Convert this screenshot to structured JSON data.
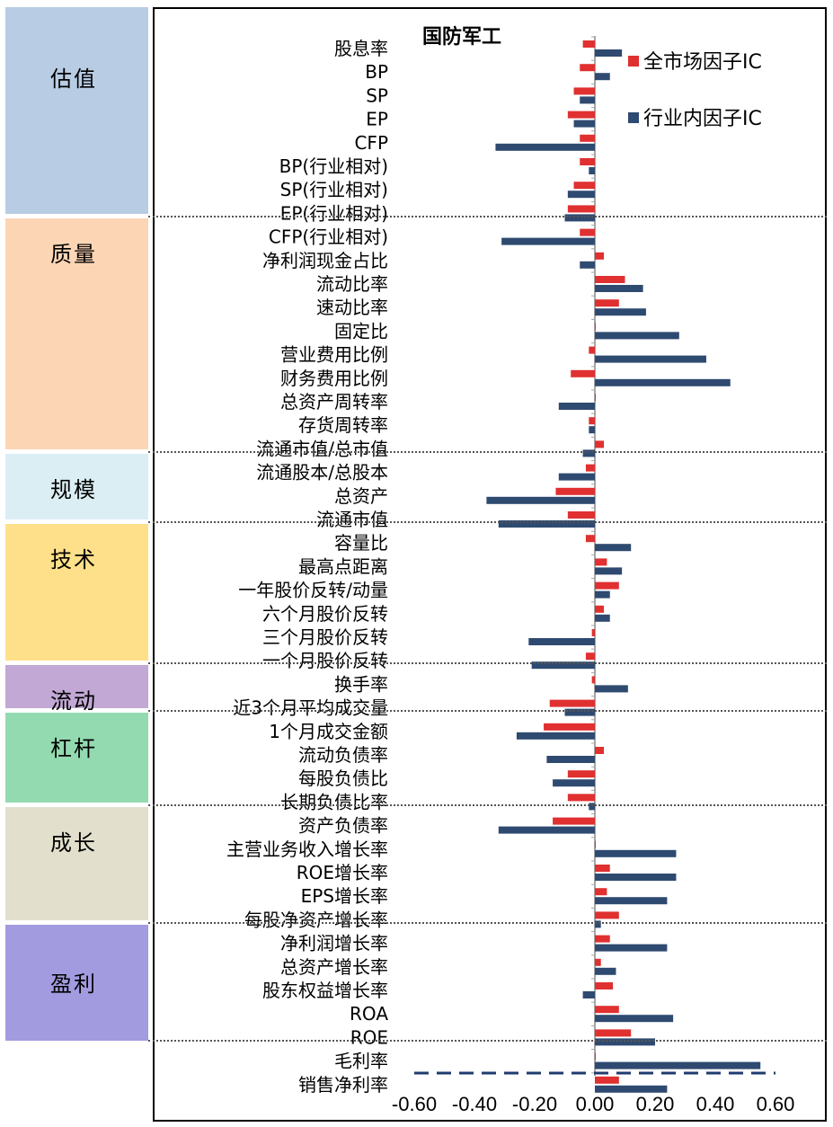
{
  "categories": [
    {
      "name": "估值",
      "color": "#b8cce4",
      "first": "股息率"
    },
    {
      "name": "质量",
      "color": "#fcd5b5",
      "first": "CFP(行业相对)"
    },
    {
      "name": "规模",
      "color": "#dbeef4",
      "first": "流通股本/总股本"
    },
    {
      "name": "技术",
      "color": "#ffe08a",
      "first": "容量比"
    },
    {
      "name": "流动",
      "color": "#c2a8d4",
      "first": "换手率"
    },
    {
      "name": "杠杆",
      "color": "#93dab0",
      "first": "1个月成交金额"
    },
    {
      "name": "成长",
      "color": "#e2dfcc",
      "first": "资产负债率"
    },
    {
      "name": "盈利",
      "color": "#a29be0",
      "first": "净利润增长率"
    }
  ],
  "chart_data": {
    "type": "bar",
    "orientation": "horizontal",
    "title": "国防军工",
    "categories": [
      "股息率",
      "BP",
      "SP",
      "EP",
      "CFP",
      "BP(行业相对)",
      "SP(行业相对)",
      "EP(行业相对)",
      "CFP(行业相对)",
      "净利润现金占比",
      "流动比率",
      "速动比率",
      "固定比",
      "营业费用比例",
      "财务费用比例",
      "总资产周转率",
      "存货周转率",
      "流通市值/总市值",
      "流通股本/总股本",
      "总资产",
      "流通市值",
      "容量比",
      "最高点距离",
      "一年股价反转/动量",
      "六个月股价反转",
      "三个月股价反转",
      "一个月股价反转",
      "换手率",
      "近3个月平均成交量",
      "1个月成交金额",
      "流动负债率",
      "每股负债比",
      "长期负债比率",
      "资产负债率",
      "主营业务收入增长率",
      "ROE增长率",
      "EPS增长率",
      "每股净资产增长率",
      "净利润增长率",
      "总资产增长率",
      "股东权益增长率",
      "ROA",
      "ROE",
      "毛利率",
      "销售净利率"
    ],
    "series": [
      {
        "name": "全市场因子IC",
        "color": "#e03030",
        "values": [
          -0.04,
          -0.05,
          -0.07,
          -0.09,
          -0.05,
          -0.05,
          -0.07,
          -0.09,
          -0.05,
          0.03,
          0.1,
          0.08,
          0.0,
          -0.02,
          -0.08,
          0.0,
          -0.02,
          0.03,
          -0.03,
          -0.13,
          -0.09,
          -0.03,
          0.04,
          0.08,
          0.03,
          -0.01,
          -0.03,
          -0.01,
          -0.15,
          -0.17,
          0.03,
          -0.09,
          -0.09,
          -0.14,
          0.0,
          0.05,
          0.04,
          0.08,
          0.05,
          0.02,
          0.06,
          0.08,
          0.12,
          0.0,
          0.08
        ]
      },
      {
        "name": "行业内因子IC",
        "color": "#2f4a70",
        "values": [
          0.09,
          0.05,
          -0.05,
          -0.07,
          -0.33,
          -0.02,
          -0.09,
          -0.1,
          -0.31,
          -0.05,
          0.16,
          0.17,
          0.28,
          0.37,
          0.45,
          -0.12,
          -0.02,
          -0.04,
          -0.12,
          -0.36,
          -0.32,
          0.12,
          0.09,
          0.05,
          0.05,
          -0.22,
          -0.21,
          0.11,
          -0.1,
          -0.26,
          -0.16,
          -0.14,
          -0.02,
          -0.32,
          0.27,
          0.27,
          0.24,
          0.02,
          0.24,
          0.07,
          -0.04,
          0.26,
          0.2,
          0.55,
          0.24
        ]
      }
    ],
    "xlim": [
      -0.6,
      0.6
    ],
    "xticks": [
      "-0.60",
      "-0.40",
      "-0.20",
      "0.00",
      "0.20",
      "0.40",
      "0.60"
    ]
  }
}
